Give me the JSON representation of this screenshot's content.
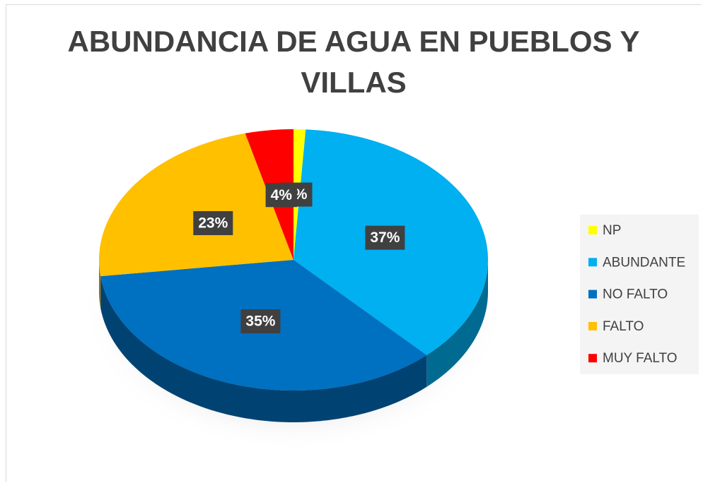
{
  "chart_data": {
    "type": "pie",
    "title": "ABUNDANCIA DE AGUA EN PUEBLOS Y VILLAS",
    "categories": [
      "NP",
      "ABUNDANTE",
      "NO FALTO",
      "FALTO",
      "MUY FALTO"
    ],
    "values": [
      1,
      37,
      35,
      23,
      4
    ],
    "value_labels": [
      "1%",
      "37%",
      "35%",
      "23%",
      "4%"
    ],
    "colors": [
      "#ffff00",
      "#00b0f0",
      "#0070c0",
      "#ffc000",
      "#ff0000"
    ],
    "legend": "right"
  }
}
